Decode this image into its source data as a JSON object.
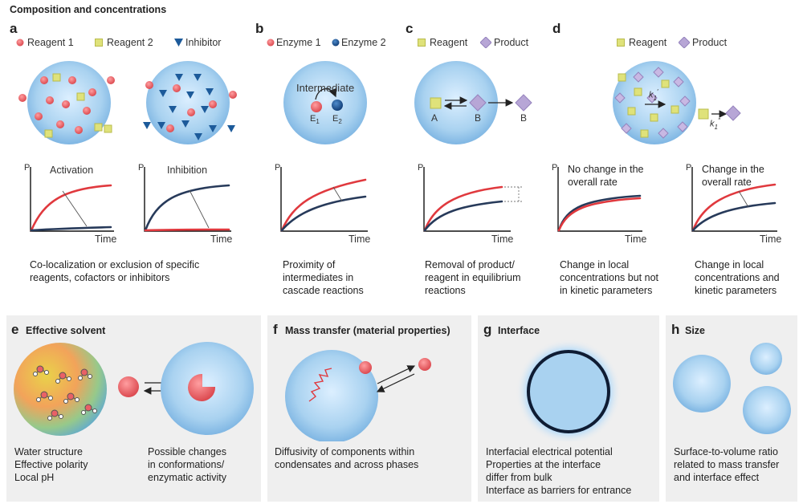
{
  "header": {
    "title": "Composition and concentrations"
  },
  "panels": {
    "a": {
      "letter": "a",
      "legend": [
        "Reagent 1",
        "Reagent 2",
        "Inhibitor"
      ],
      "plot1": {
        "axis_p": "P",
        "axis_x": "Time",
        "label": "Activation"
      },
      "plot2": {
        "axis_p": "P",
        "axis_x": "Time",
        "label": "Inhibition"
      },
      "caption": [
        "Co-localization or exclusion of specific",
        "reagents, cofactors or inhibitors"
      ]
    },
    "b": {
      "letter": "b",
      "legend": [
        "Enzyme 1",
        "Enzyme 2"
      ],
      "intermediate": "Intermediate",
      "e1": "E",
      "e1_sub": "1",
      "e2": "E",
      "e2_sub": "2",
      "plot": {
        "axis_p": "P",
        "axis_x": "Time"
      },
      "caption": [
        "Proximity of",
        "intermediates in",
        "cascade reactions"
      ]
    },
    "c": {
      "letter": "c",
      "legend": [
        "Reagent",
        "Product"
      ],
      "label_a": "A",
      "label_b": "B",
      "label_b_out": "B",
      "plot": {
        "axis_p": "P",
        "axis_x": "Time"
      },
      "caption": [
        "Removal of product/",
        "reagent in equilibrium",
        "reactions"
      ]
    },
    "d": {
      "letter": "d",
      "legend": [
        "Reagent",
        "Product"
      ],
      "k_in": "k",
      "k_in_sub": "1",
      "k_in_sup": "′",
      "k_out": "k",
      "k_out_sub": "1",
      "k_out_sup": "″",
      "plot1": {
        "axis_p": "P",
        "axis_x": "Time",
        "label": [
          "No change in the",
          "overall rate"
        ]
      },
      "plot2": {
        "axis_p": "P",
        "axis_x": "Time",
        "label": [
          "Change in the",
          "overall rate"
        ]
      },
      "caption1": [
        "Change in local",
        "concentrations but not",
        "in kinetic parameters"
      ],
      "caption2": [
        "Change in local",
        "concentrations and",
        "kinetic parameters"
      ]
    },
    "e": {
      "letter": "e",
      "title": "Effective solvent",
      "text1": [
        "Water structure",
        "Effective polarity",
        "Local pH"
      ],
      "text2": [
        "Possible changes",
        "in conformations/",
        "enzymatic activity"
      ]
    },
    "f": {
      "letter": "f",
      "title": "Mass transfer (material properties)",
      "text": [
        "Diffusivity of components within",
        "condensates and across phases"
      ]
    },
    "g": {
      "letter": "g",
      "title": "Interface",
      "text": [
        "Interfacial electrical potential",
        "Properties at the interface",
        "differ from bulk",
        "Interface as barriers for entrance"
      ]
    },
    "h": {
      "letter": "h",
      "title": "Size",
      "text": [
        "Surface-to-volume ratio",
        "related to mass transfer",
        "and interface effect"
      ]
    }
  },
  "colors": {
    "droplet": "#a9d2f0",
    "reagent_red": "#e96166",
    "reagent_yellow": "#dfe27a",
    "inhibitor_blue": "#1c5a9a",
    "enzyme_blue": "#1c5a9a",
    "product_purple": "#b7a6d6",
    "curve_red": "#e0393e",
    "curve_navy": "#273a5a",
    "panel_bg": "#efefef"
  }
}
